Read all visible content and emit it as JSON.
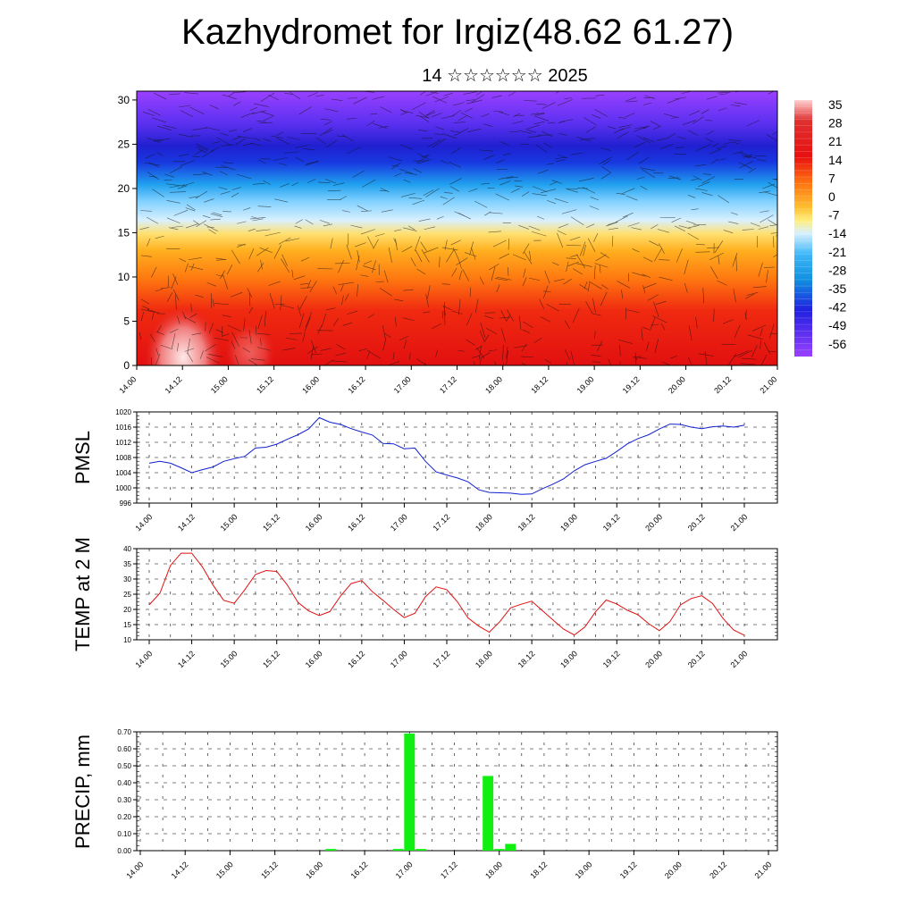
{
  "title": "Kazhydromet for Irgiz(48.62 61.27)",
  "subtitle": "14 ☆☆☆☆☆☆ 2025",
  "chart_data": [
    {
      "type": "heatmap",
      "name": "cross-section",
      "x_ticks": [
        "14.00",
        "14.12",
        "15.00",
        "15.12",
        "16.00",
        "16.12",
        "17.00",
        "17.12",
        "18.00",
        "18.12",
        "19.00",
        "19.12",
        "20.00",
        "20.12",
        "21.00"
      ],
      "y_ticks": [
        "0",
        "5",
        "10",
        "15",
        "20",
        "25",
        "30"
      ],
      "ylim": [
        0,
        31
      ],
      "colorbar_labels": [
        "35",
        "28",
        "21",
        "14",
        "7",
        "0",
        "-7",
        "-14",
        "-21",
        "-28",
        "-35",
        "-42",
        "-49",
        "-56"
      ],
      "colors": {
        "hot": "#ffe0e0",
        "warm": "#e01010",
        "orange": "#ff9a10",
        "yellow": "#ffe060",
        "cool": "#8fd4ff",
        "blue": "#2030e0",
        "violet": "#9a40ff"
      }
    },
    {
      "type": "line",
      "ylabel": "PMSL",
      "y_ticks": [
        "1020",
        "1016",
        "1012",
        "1008",
        "1004",
        "1000",
        "996"
      ],
      "ylim": [
        996,
        1020
      ],
      "x_ticks": [
        "14.00",
        "14.12",
        "15.00",
        "15.12",
        "16.00",
        "16.12",
        "17.00",
        "17.12",
        "18.00",
        "18.12",
        "19.00",
        "19.12",
        "20.00",
        "20.12",
        "21.00"
      ],
      "color": "#1020d0",
      "values": [
        1006.5,
        1007,
        1006.5,
        1005.3,
        1004,
        1004.8,
        1005.5,
        1007,
        1007.7,
        1008.3,
        1010.5,
        1010.7,
        1011.5,
        1012.8,
        1014,
        1015.5,
        1018.5,
        1017.3,
        1016.7,
        1015.6,
        1014.7,
        1013.9,
        1011.7,
        1011.6,
        1010.3,
        1010.5,
        1007,
        1004.2,
        1003.4,
        1002.6,
        1001.6,
        999.5,
        998.8,
        998.7,
        998.6,
        998.3,
        998.4,
        999.8,
        1001,
        1002.4,
        1004.5,
        1006.1,
        1007,
        1007.8,
        1009.6,
        1011.6,
        1013,
        1014,
        1015.5,
        1016.8,
        1016.7,
        1016,
        1015.6,
        1016.1,
        1016.3,
        1016,
        1016.5
      ]
    },
    {
      "type": "line",
      "ylabel": "TEMP at 2 M",
      "y_ticks": [
        "40",
        "35",
        "30",
        "25",
        "20",
        "15",
        "10"
      ],
      "ylim": [
        10,
        40
      ],
      "x_ticks": [
        "14.00",
        "14.12",
        "15.00",
        "15.12",
        "16.00",
        "16.12",
        "17.00",
        "17.12",
        "18.00",
        "18.12",
        "19.00",
        "19.12",
        "20.00",
        "20.12",
        "21.00"
      ],
      "color": "#e01010",
      "values": [
        21.5,
        25.3,
        34.5,
        38.5,
        38.5,
        34,
        28,
        23,
        22,
        26.5,
        31.5,
        32.8,
        32.5,
        28,
        22.3,
        19.5,
        18,
        19.3,
        24.4,
        28.5,
        29.5,
        25.8,
        23,
        20,
        17.3,
        18.7,
        24.2,
        27.4,
        26.5,
        22.5,
        17.2,
        14.5,
        12.5,
        16,
        20.5,
        21.7,
        22.7,
        19.6,
        16.5,
        13.5,
        11.6,
        14.2,
        19.2,
        23.1,
        21.8,
        19.7,
        18.2,
        15.3,
        13,
        16,
        21.5,
        23.6,
        24.5,
        22,
        17,
        13.2,
        11.5
      ]
    },
    {
      "type": "bar",
      "ylabel": "PRECIP, mm",
      "y_ticks": [
        "0.70",
        "0.60",
        "0.50",
        "0.40",
        "0.30",
        "0.20",
        "0.10",
        "0.00"
      ],
      "ylim": [
        0,
        0.7
      ],
      "x_ticks": [
        "14.00",
        "14.12",
        "15.00",
        "15.12",
        "16.00",
        "16.12",
        "17.00",
        "17.12",
        "18.00",
        "18.12",
        "19.00",
        "19.12",
        "20.00",
        "20.12",
        "21.00"
      ],
      "color": "#10f010",
      "values": [
        0,
        0,
        0,
        0,
        0,
        0,
        0,
        0,
        0,
        0,
        0,
        0,
        0,
        0,
        0,
        0,
        0,
        0.01,
        0,
        0,
        0,
        0,
        0,
        0.01,
        0.69,
        0.01,
        0,
        0,
        0,
        0,
        0,
        0.44,
        0.01,
        0.04,
        0,
        0,
        0,
        0,
        0,
        0,
        0,
        0,
        0,
        0,
        0,
        0,
        0,
        0,
        0,
        0,
        0,
        0,
        0,
        0,
        0,
        0,
        0
      ]
    }
  ]
}
